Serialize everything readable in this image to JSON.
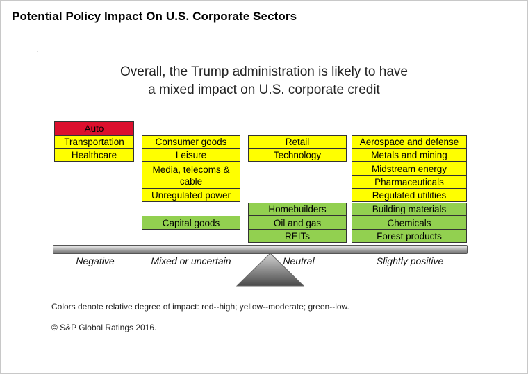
{
  "header": {
    "title": "Potential Policy Impact On U.S. Corporate Sectors"
  },
  "headline": {
    "line1": "Overall, the Trump administration is likely to have",
    "line2": "a mixed impact on U.S. corporate credit"
  },
  "categories": {
    "negative": "Negative",
    "mixed": "Mixed or uncertain",
    "neutral": "Neutral",
    "positive": "Slightly positive"
  },
  "columns": {
    "negative": [
      {
        "label": "Auto",
        "impact": "high"
      },
      {
        "label": "Transportation",
        "impact": "moderate"
      },
      {
        "label": "Healthcare",
        "impact": "moderate"
      }
    ],
    "mixed": [
      {
        "label": "Consumer goods",
        "impact": "moderate"
      },
      {
        "label": "Leisure",
        "impact": "moderate"
      },
      {
        "label": "Media, telecoms & cable",
        "impact": "moderate"
      },
      {
        "label": "Unregulated power",
        "impact": "moderate"
      },
      {
        "label": "Capital goods",
        "impact": "low"
      }
    ],
    "neutral": [
      {
        "label": "Retail",
        "impact": "moderate"
      },
      {
        "label": "Technology",
        "impact": "moderate"
      },
      {
        "label": "Homebuilders",
        "impact": "low"
      },
      {
        "label": "Oil and gas",
        "impact": "low"
      },
      {
        "label": "REITs",
        "impact": "low"
      }
    ],
    "positive": [
      {
        "label": "Aerospace and defense",
        "impact": "moderate"
      },
      {
        "label": "Metals and mining",
        "impact": "moderate"
      },
      {
        "label": "Midstream energy",
        "impact": "moderate"
      },
      {
        "label": "Pharmaceuticals",
        "impact": "moderate"
      },
      {
        "label": "Regulated utilities",
        "impact": "moderate"
      },
      {
        "label": "Building materials",
        "impact": "low"
      },
      {
        "label": "Chemicals",
        "impact": "low"
      },
      {
        "label": "Forest products",
        "impact": "low"
      }
    ]
  },
  "colors": {
    "high": "#dc0f2d",
    "moderate": "#ffff00",
    "low": "#92d050"
  },
  "footer": {
    "legend_note": "Colors denote relative degree of impact: red--high; yellow--moderate; green--low.",
    "copyright": "© S&P Global Ratings 2016."
  }
}
